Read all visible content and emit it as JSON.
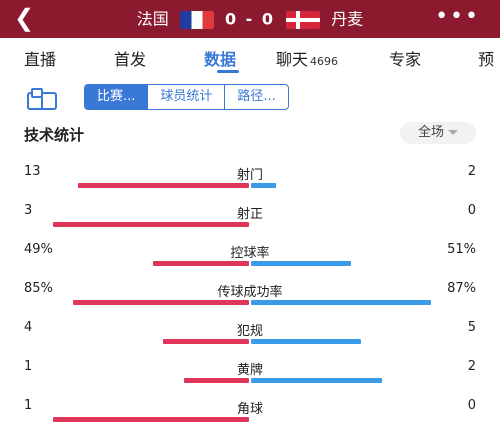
{
  "header": {
    "home_team": "法国",
    "away_team": "丹麦",
    "score": "0 - 0"
  },
  "tabs": [
    {
      "label": "直播"
    },
    {
      "label": "首发"
    },
    {
      "label": "数据",
      "active": true
    },
    {
      "label": "聊天",
      "count": "4696"
    },
    {
      "label": "专家"
    },
    {
      "label": "预"
    }
  ],
  "segments": [
    {
      "label": "比赛...",
      "active": true
    },
    {
      "label": "球员统计"
    },
    {
      "label": "路径..."
    }
  ],
  "section": {
    "title": "技术统计",
    "scope": "全场"
  },
  "colors": {
    "header_bg": "#8b1a2e",
    "home_bar": "#e0355a",
    "away_bar": "#3b9be8",
    "accent": "#3a78d8"
  },
  "stats": [
    {
      "name": "射门",
      "home": "13",
      "away": "2",
      "home_share": 0.87,
      "away_share": 0.13
    },
    {
      "name": "射正",
      "home": "3",
      "away": "0",
      "home_share": 1.0,
      "away_share": 0.0
    },
    {
      "name": "控球率",
      "home": "49%",
      "away": "51%",
      "home_share": 0.49,
      "away_share": 0.51
    },
    {
      "name": "传球成功率",
      "home": "85%",
      "away": "87%",
      "home_share": 0.9,
      "away_share": 0.92
    },
    {
      "name": "犯规",
      "home": "4",
      "away": "5",
      "home_share": 0.44,
      "away_share": 0.56
    },
    {
      "name": "黄牌",
      "home": "1",
      "away": "2",
      "home_share": 0.33,
      "away_share": 0.67
    },
    {
      "name": "角球",
      "home": "1",
      "away": "0",
      "home_share": 1.0,
      "away_share": 0.0
    }
  ]
}
